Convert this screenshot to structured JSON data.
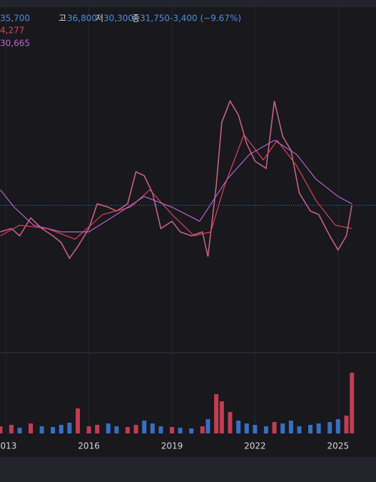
{
  "header": {
    "open": "35,700",
    "high_label": "고",
    "high": "36,800",
    "low_label": "저",
    "low": "30,300",
    "close_label": "종",
    "close": "31,750",
    "change": "-3,400 (−9.67%)",
    "ma1": "4,277",
    "ma2": "30,665"
  },
  "chart_data": {
    "type": "line",
    "xlim": [
      2012.79,
      2026.37
    ],
    "xticks": [
      2013,
      2016,
      2019,
      2022,
      2025
    ],
    "ylim": [
      6000,
      67000
    ],
    "last_price": 31750,
    "last_price_color": "#3f7fe0",
    "series": [
      {
        "color": "#c8627f",
        "x": [
          2012.8,
          2013.2,
          2013.5,
          2013.9,
          2014.3,
          2014.7,
          2015.0,
          2015.3,
          2015.6,
          2016.0,
          2016.3,
          2016.7,
          2017.0,
          2017.4,
          2017.7,
          2018.0,
          2018.3,
          2018.6,
          2019.0,
          2019.3,
          2019.7,
          2020.1,
          2020.3,
          2020.6,
          2020.8,
          2021.1,
          2021.4,
          2021.7,
          2022.0,
          2022.4,
          2022.7,
          2023.0,
          2023.3,
          2023.6,
          2024.0,
          2024.3,
          2024.7,
          2025.0,
          2025.3,
          2025.5
        ],
        "values": [
          27000,
          27600,
          26300,
          29500,
          27600,
          26300,
          25100,
          22300,
          24400,
          27600,
          32000,
          31400,
          30700,
          32000,
          37700,
          37000,
          33900,
          27600,
          28900,
          27000,
          26300,
          27000,
          22600,
          35200,
          46500,
          50300,
          47800,
          42700,
          39600,
          38300,
          50300,
          44000,
          41500,
          33900,
          30700,
          30100,
          26300,
          23800,
          26300,
          31750
        ]
      },
      {
        "color": "#e0445a",
        "x": [
          2012.8,
          2013.5,
          2014.5,
          2015.5,
          2016.5,
          2017.5,
          2018.2,
          2019.0,
          2019.8,
          2020.4,
          2020.9,
          2021.6,
          2022.3,
          2022.8,
          2023.5,
          2024.2,
          2024.9,
          2025.5
        ],
        "values": [
          26300,
          28200,
          27600,
          25700,
          30100,
          31400,
          34500,
          30100,
          26300,
          27000,
          35200,
          44300,
          39800,
          43300,
          38800,
          32600,
          28200,
          27600
        ]
      },
      {
        "color": "#b866cc",
        "x": [
          2012.8,
          2013.3,
          2014.0,
          2015.0,
          2016.0,
          2017.0,
          2018.0,
          2019.0,
          2020.0,
          2021.0,
          2021.8,
          2022.7,
          2023.5,
          2024.2,
          2025.0,
          2025.5
        ],
        "values": [
          34500,
          31400,
          28200,
          27000,
          27000,
          30100,
          33300,
          31400,
          28900,
          36400,
          40800,
          43300,
          40800,
          36400,
          33300,
          32000
        ]
      }
    ],
    "volume": {
      "ylim": [
        0,
        100
      ],
      "colors": [
        "#e0445a",
        "#3f7fe0"
      ],
      "values": [
        10,
        12,
        8,
        14,
        10,
        9,
        12,
        15,
        35,
        10,
        12,
        14,
        10,
        9,
        12,
        18,
        14,
        10,
        9,
        8,
        7,
        10,
        20,
        55,
        45,
        30,
        18,
        14,
        12,
        10,
        16,
        14,
        18,
        10,
        12,
        14,
        16,
        20,
        25,
        85
      ]
    }
  }
}
